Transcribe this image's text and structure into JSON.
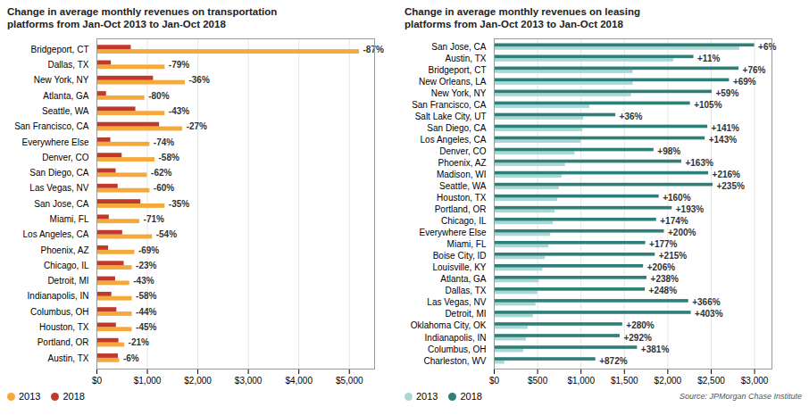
{
  "chart_data": [
    {
      "type": "bar",
      "orientation": "horizontal",
      "title": "Change in average monthly revenues on transportation\nplatforms from Jan-Oct 2013 to Jan-Oct 2018",
      "categories": [
        "Bridgeport, CT",
        "Dallas, TX",
        "New York, NY",
        "Atlanta, GA",
        "Seattle, WA",
        "San Francisco, CA",
        "Everywhere Else",
        "Denver, CO",
        "San Diego, CA",
        "Las Vegas, NV",
        "San Jose, CA",
        "Miami, FL",
        "Los Angeles, CA",
        "Phoenix, AZ",
        "Chicago, IL",
        "Detroit, MI",
        "Indianapolis, IN",
        "Columbus, OH",
        "Houston, TX",
        "Portland, OR",
        "Austin, TX"
      ],
      "series": [
        {
          "name": "2013",
          "color": "#F5A93A",
          "values": [
            5200,
            1350,
            1750,
            950,
            1350,
            1700,
            1050,
            1150,
            1000,
            1050,
            1350,
            850,
            1100,
            750,
            700,
            650,
            700,
            700,
            700,
            550,
            450
          ]
        },
        {
          "name": "2018",
          "color": "#C0392B",
          "values": [
            680,
            285,
            1120,
            190,
            770,
            1240,
            275,
            500,
            380,
            420,
            870,
            245,
            510,
            230,
            540,
            370,
            295,
            395,
            385,
            435,
            425
          ]
        }
      ],
      "annotations": [
        "-87%",
        "-79%",
        "-36%",
        "-80%",
        "-43%",
        "-27%",
        "-74%",
        "-58%",
        "-62%",
        "-60%",
        "-35%",
        "-71%",
        "-54%",
        "-69%",
        "-23%",
        "-43%",
        "-58%",
        "-44%",
        "-45%",
        "-21%",
        "-6%"
      ],
      "xlim": [
        0,
        5500
      ],
      "xticks": [
        {
          "value": 0,
          "label": "$0"
        },
        {
          "value": 1000,
          "label": "$1,000"
        },
        {
          "value": 2000,
          "label": "$2,000"
        },
        {
          "value": 3000,
          "label": "$3,000"
        },
        {
          "value": 4000,
          "label": "$4,000"
        },
        {
          "value": 5000,
          "label": "$5,000"
        }
      ],
      "grid": true,
      "legend": "lower left"
    },
    {
      "type": "bar",
      "orientation": "horizontal",
      "title": "Change in average monthly revenues on leasing\nplatforms from Jan-Oct 2013 to Jan-Oct 2018",
      "categories": [
        "San Jose, CA",
        "Austin, TX",
        "Bridgeport, CT",
        "New Orleans, LA",
        "New York, NY",
        "San Francisco, CA",
        "Salt Lake City, UT",
        "San Diego, CA",
        "Los Angeles, CA",
        "Denver, CO",
        "Phoenix, AZ",
        "Madison, WI",
        "Seattle, WA",
        "Houston, TX",
        "Portland, OR",
        "Chicago, IL",
        "Everywhere Else",
        "Miami, FL",
        "Boise City, ID",
        "Louisville, KY",
        "Atlanta, GA",
        "Dallas, TX",
        "Las Vegas, NV",
        "Detroit, MI",
        "Oklahoma City, OK",
        "Indianapolis, IN",
        "Columbus, OH",
        "Charleston, WV"
      ],
      "series": [
        {
          "name": "2013",
          "color": "#A8D8D5",
          "values": [
            2830,
            2070,
            1600,
            1600,
            1580,
            1100,
            1030,
            1020,
            1000,
            930,
            820,
            780,
            750,
            730,
            700,
            680,
            650,
            630,
            590,
            560,
            520,
            500,
            480,
            450,
            390,
            370,
            340,
            120
          ]
        },
        {
          "name": "2018",
          "color": "#2E7F77",
          "values": [
            3000,
            2300,
            2820,
            2710,
            2510,
            2260,
            1400,
            2460,
            2430,
            1840,
            2160,
            2470,
            2520,
            1900,
            2050,
            1870,
            1960,
            1745,
            1855,
            1720,
            1760,
            1740,
            2240,
            2270,
            1480,
            1450,
            1650,
            1170
          ]
        }
      ],
      "annotations": [
        "+6%",
        "+11%",
        "+76%",
        "+69%",
        "+59%",
        "+105%",
        "+36%",
        "+141%",
        "+143%",
        "+98%",
        "+163%",
        "+216%",
        "+235%",
        "+160%",
        "+193%",
        "+174%",
        "+200%",
        "+177%",
        "+215%",
        "+206%",
        "+238%",
        "+248%",
        "+366%",
        "+403%",
        "+280%",
        "+292%",
        "+381%",
        "+872%"
      ],
      "xlim": [
        0,
        3200
      ],
      "xticks": [
        {
          "value": 0,
          "label": "$0"
        },
        {
          "value": 500,
          "label": "$500"
        },
        {
          "value": 1000,
          "label": "$1,000"
        },
        {
          "value": 1500,
          "label": "$1,500"
        },
        {
          "value": 2000,
          "label": "$2,000"
        },
        {
          "value": 2500,
          "label": "$2,500"
        },
        {
          "value": 3000,
          "label": "$3,000"
        }
      ],
      "grid": true,
      "legend": "lower left",
      "caption": "Source: JPMorgan Chase Institute"
    }
  ]
}
